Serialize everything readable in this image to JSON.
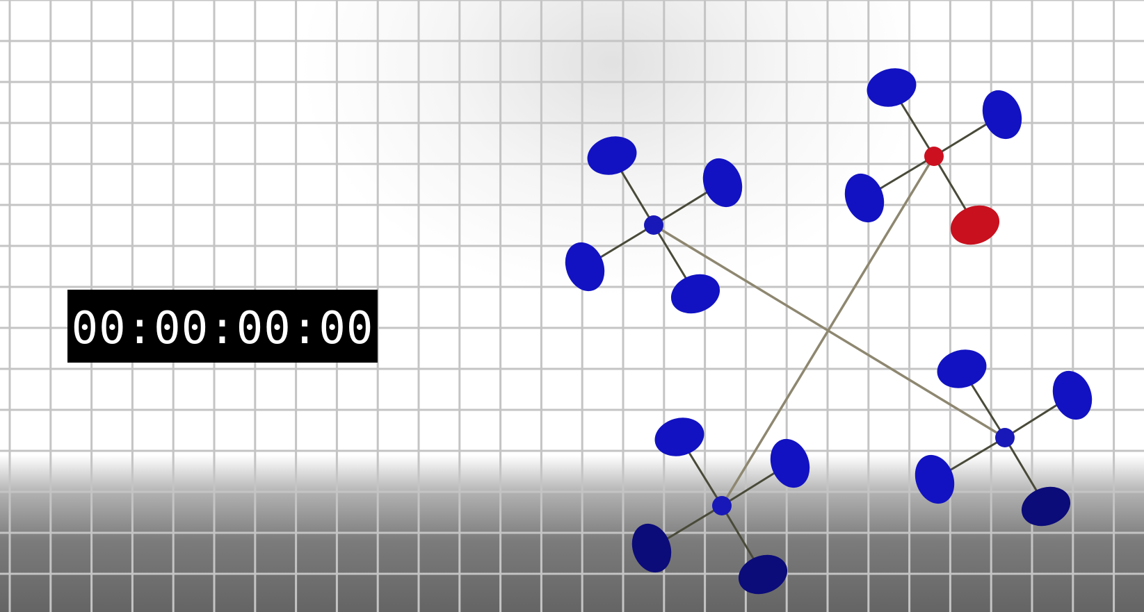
{
  "timecode": {
    "value": "00:00:00:00"
  },
  "colors": {
    "rotor": "#1212c2",
    "rotor_dark": "#0b0b7a",
    "hub": "#1818b8",
    "lead_hub": "#cc1020",
    "lead_rotor": "#c8101e",
    "arm": "#4a4a3a",
    "tether": "#8e8770",
    "grid_line": "#c4c4c4"
  },
  "icons": {
    "drone": "quadcopter-icon",
    "hub": "hub-icon",
    "rotor": "rotor-icon",
    "tether": "tether-line"
  },
  "drones": [
    {
      "id": "drone-1",
      "lead": false
    },
    {
      "id": "drone-2",
      "lead": true
    },
    {
      "id": "drone-3",
      "lead": false
    },
    {
      "id": "drone-4",
      "lead": false
    }
  ]
}
